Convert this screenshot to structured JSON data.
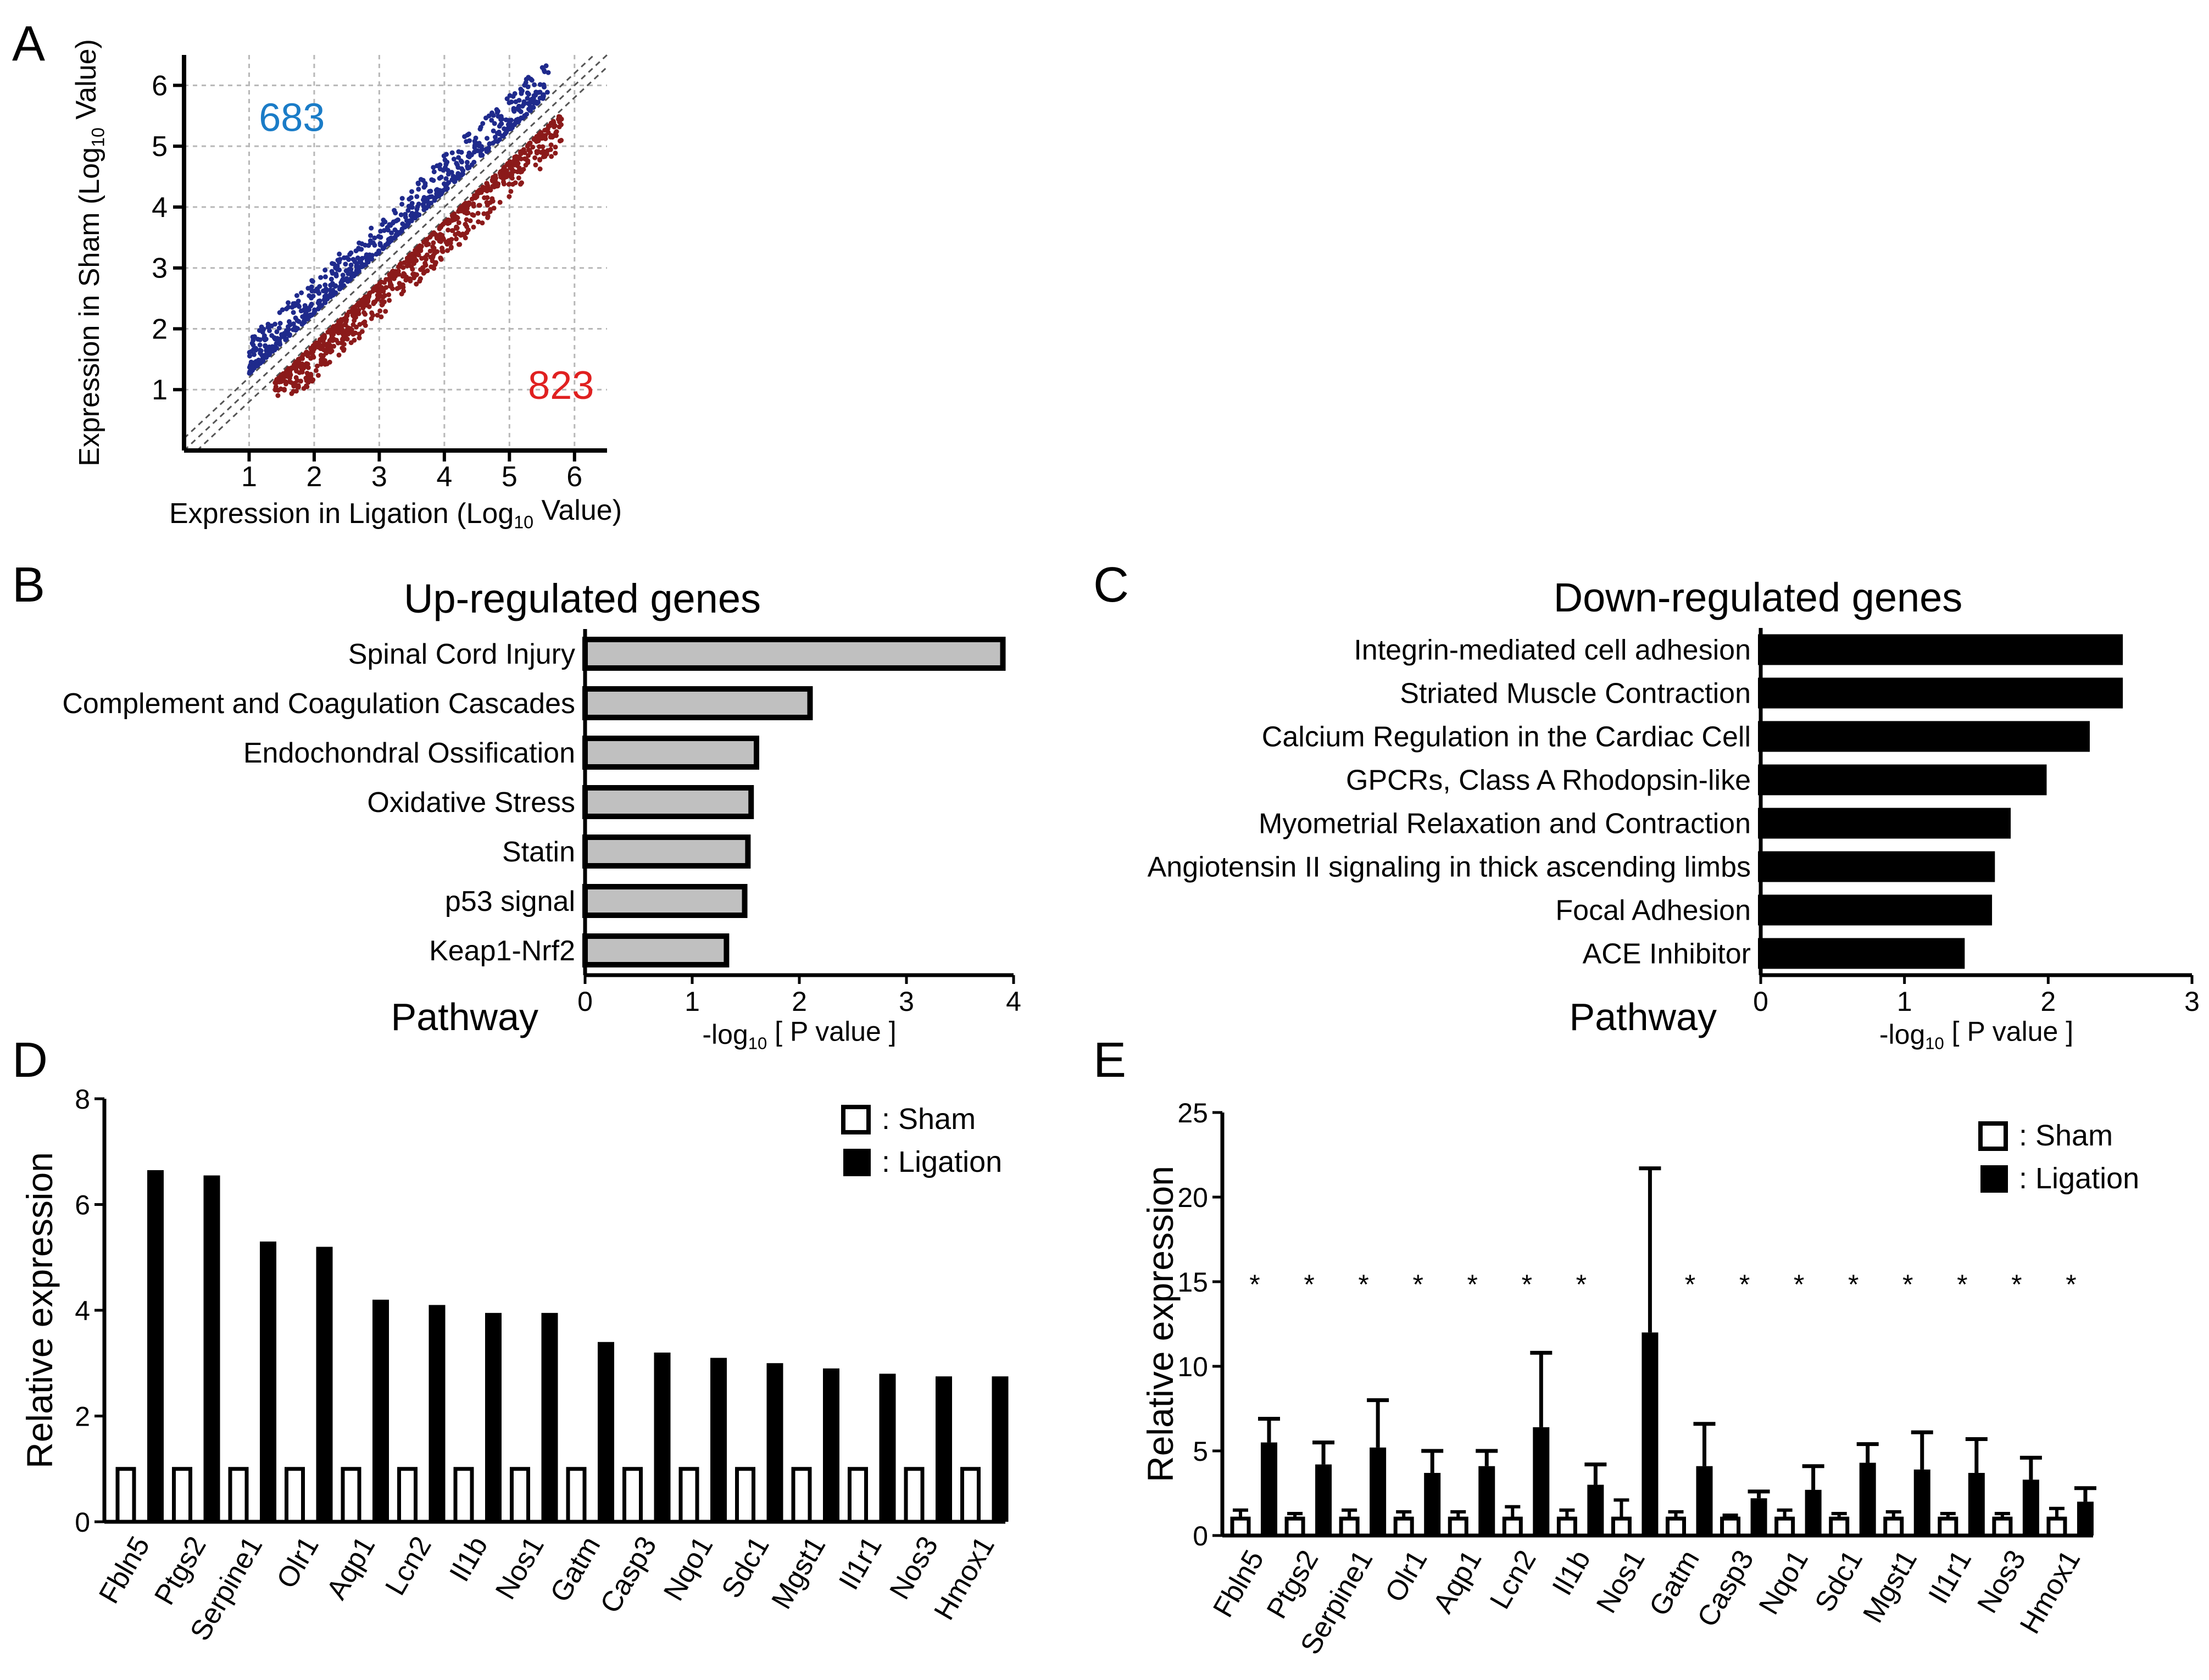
{
  "panel_labels": {
    "a": "A",
    "b": "B",
    "c": "C",
    "d": "D",
    "e": "E"
  },
  "chart_data": [
    {
      "panel": "A",
      "type": "scatter",
      "xlabel_prefix": "Expression in Ligation (Log",
      "ylabel_prefix": "Expression in Sham (Log",
      "label_sub": "10",
      "label_suffix": " Value)",
      "x_ticks": [
        "1",
        "2",
        "3",
        "4",
        "5",
        "6"
      ],
      "y_ticks": [
        "1",
        "2",
        "3",
        "4",
        "5",
        "6"
      ],
      "xlim": [
        0,
        6.5
      ],
      "ylim": [
        0,
        6.5
      ],
      "grid": true,
      "up_count": "683",
      "down_count": "823",
      "up_color": "#1a7cc7",
      "down_color": "#e02020",
      "point_color_up": "#1f2a8c",
      "point_color_down": "#8b1a1a",
      "diagonal_offsets": [
        -0.2,
        0,
        0.2
      ],
      "series": [
        {
          "name": "up",
          "x_range": [
            1.0,
            5.6
          ],
          "offset_range": [
            0.26,
            0.85
          ],
          "n": 683
        },
        {
          "name": "down",
          "x_range": [
            1.4,
            5.8
          ],
          "offset_range": [
            -0.26,
            -0.85
          ],
          "n": 823
        }
      ]
    },
    {
      "panel": "B",
      "type": "bar",
      "orientation": "horizontal",
      "title": "Up-regulated genes",
      "category_axis_label": "Pathway",
      "xlabel_prefix": "-log",
      "xlabel_sub": "10",
      "xlabel_suffix": " [ P value ]",
      "categories": [
        "Spinal Cord Injury",
        "Complement and Coagulation Cascades",
        "Endochondral Ossification",
        "Oxidative Stress",
        "Statin",
        "p53 signal",
        "Keap1-Nrf2"
      ],
      "values": [
        3.9,
        2.1,
        1.6,
        1.55,
        1.52,
        1.49,
        1.32
      ],
      "x_ticks": [
        "0",
        "1",
        "2",
        "3",
        "4"
      ],
      "xlim": [
        0,
        4
      ],
      "bar_color": "#c0c0c0"
    },
    {
      "panel": "C",
      "type": "bar",
      "orientation": "horizontal",
      "title": "Down-regulated genes",
      "category_axis_label": "Pathway",
      "xlabel_prefix": "-log",
      "xlabel_sub": "10",
      "xlabel_suffix": " [ P value ]",
      "categories": [
        "Integrin-mediated cell adhesion",
        "Striated Muscle Contraction",
        "Calcium Regulation in the Cardiac Cell",
        "GPCRs, Class A Rhodopsin-like",
        "Myometrial Relaxation and Contraction",
        "Angiotensin II signaling in thick ascending limbs",
        "Focal Adhesion",
        "ACE Inhibitor"
      ],
      "values": [
        2.5,
        2.5,
        2.27,
        1.97,
        1.72,
        1.61,
        1.59,
        1.4
      ],
      "x_ticks": [
        "0",
        "1",
        "2",
        "3"
      ],
      "xlim": [
        0,
        3
      ],
      "bar_color": "#000000"
    },
    {
      "panel": "D",
      "type": "bar",
      "ylabel": "Relative expression",
      "categories": [
        "Fbln5",
        "Ptgs2",
        "Serpine1",
        "Olr1",
        "Aqp1",
        "Lcn2",
        "Il1b",
        "Nos1",
        "Gatm",
        "Casp3",
        "Nqo1",
        "Sdc1",
        "Mgst1",
        "Il1r1",
        "Nos3",
        "Hmox1"
      ],
      "y_ticks": [
        "0",
        "2",
        "4",
        "6",
        "8"
      ],
      "ylim": [
        0,
        8
      ],
      "legend": [
        "Sham",
        "Ligation"
      ],
      "legend_prefix": ": ",
      "legend_position": "top-right",
      "series": [
        {
          "name": "Sham",
          "values": [
            1,
            1,
            1,
            1,
            1,
            1,
            1,
            1,
            1,
            1,
            1,
            1,
            1,
            1,
            1,
            1
          ]
        },
        {
          "name": "Ligation",
          "values": [
            6.65,
            6.55,
            5.3,
            5.2,
            4.2,
            4.1,
            3.95,
            3.95,
            3.4,
            3.2,
            3.1,
            3.0,
            2.9,
            2.8,
            2.75,
            2.75
          ]
        }
      ]
    },
    {
      "panel": "E",
      "type": "bar",
      "ylabel": "Relative expression",
      "categories": [
        "Fbln5",
        "Ptgs2",
        "Serpine1",
        "Olr1",
        "Aqp1",
        "Lcn2",
        "Il1b",
        "Nos1",
        "Gatm",
        "Casp3",
        "Nqo1",
        "Sdc1",
        "Mgst1",
        "Il1r1",
        "Nos3",
        "Hmox1"
      ],
      "y_ticks": [
        "0",
        "5",
        "10",
        "15",
        "20",
        "25"
      ],
      "ylim": [
        0,
        25
      ],
      "legend": [
        "Sham",
        "Ligation"
      ],
      "legend_prefix": ": ",
      "legend_position": "top-right",
      "significance_marker": "*",
      "significant": [
        true,
        true,
        true,
        true,
        true,
        true,
        true,
        false,
        true,
        true,
        true,
        true,
        true,
        true,
        true,
        true
      ],
      "series": [
        {
          "name": "Sham",
          "values": [
            1,
            1,
            1,
            1,
            1,
            1,
            1,
            1,
            1,
            1,
            1,
            1,
            1,
            1,
            1,
            1
          ],
          "errors": [
            0.5,
            0.3,
            0.5,
            0.4,
            0.4,
            0.7,
            0.5,
            1.1,
            0.4,
            0.2,
            0.5,
            0.3,
            0.4,
            0.3,
            0.3,
            0.6
          ]
        },
        {
          "name": "Ligation",
          "values": [
            5.5,
            4.2,
            5.2,
            3.7,
            4.1,
            6.4,
            3.0,
            12.0,
            4.1,
            2.2,
            2.7,
            4.3,
            3.9,
            3.7,
            3.3,
            2.0
          ],
          "errors": [
            1.4,
            1.3,
            2.8,
            1.3,
            0.9,
            4.4,
            1.2,
            9.7,
            2.5,
            0.4,
            1.4,
            1.1,
            2.2,
            2.0,
            1.3,
            0.8
          ]
        }
      ]
    }
  ]
}
